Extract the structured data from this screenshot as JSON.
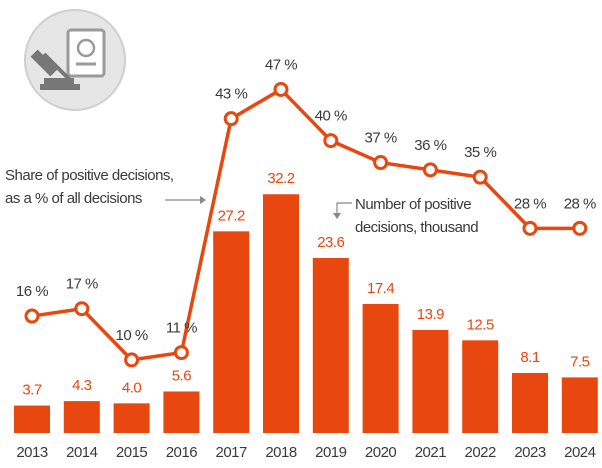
{
  "chart_data": {
    "type": "bar_line",
    "categories": [
      "2013",
      "2014",
      "2015",
      "2016",
      "2017",
      "2018",
      "2019",
      "2020",
      "2021",
      "2022",
      "2023",
      "2024"
    ],
    "series": [
      {
        "name": [
          "Number of positive",
          "decisions, thousand"
        ],
        "type": "bar",
        "color": "#e8470f",
        "values": [
          3.7,
          4.3,
          4.0,
          5.6,
          27.2,
          32.2,
          23.6,
          17.4,
          13.9,
          12.5,
          8.1,
          7.5
        ],
        "value_labels": [
          "3.7",
          "4.3",
          "4.0",
          "5.6",
          "27.2",
          "32.2",
          "23.6",
          "17.4",
          "13.9",
          "12.5",
          "8.1",
          "7.5"
        ]
      },
      {
        "name": [
          "Share of positive decisions,",
          "as a % of all decisions"
        ],
        "type": "line",
        "axis": "y2",
        "color": "#e8470f",
        "values": [
          16,
          17,
          10,
          11,
          43,
          47,
          40,
          37,
          36,
          35,
          28,
          28
        ],
        "value_labels": [
          "16 %",
          "17 %",
          "10 %",
          "11 %",
          "43 %",
          "47 %",
          "40 %",
          "37 %",
          "36 %",
          "35 %",
          "28 %",
          "28 %"
        ]
      }
    ],
    "ylim": [
      0,
      55.7
    ],
    "y2lim": [
      0,
      56.5
    ]
  }
}
